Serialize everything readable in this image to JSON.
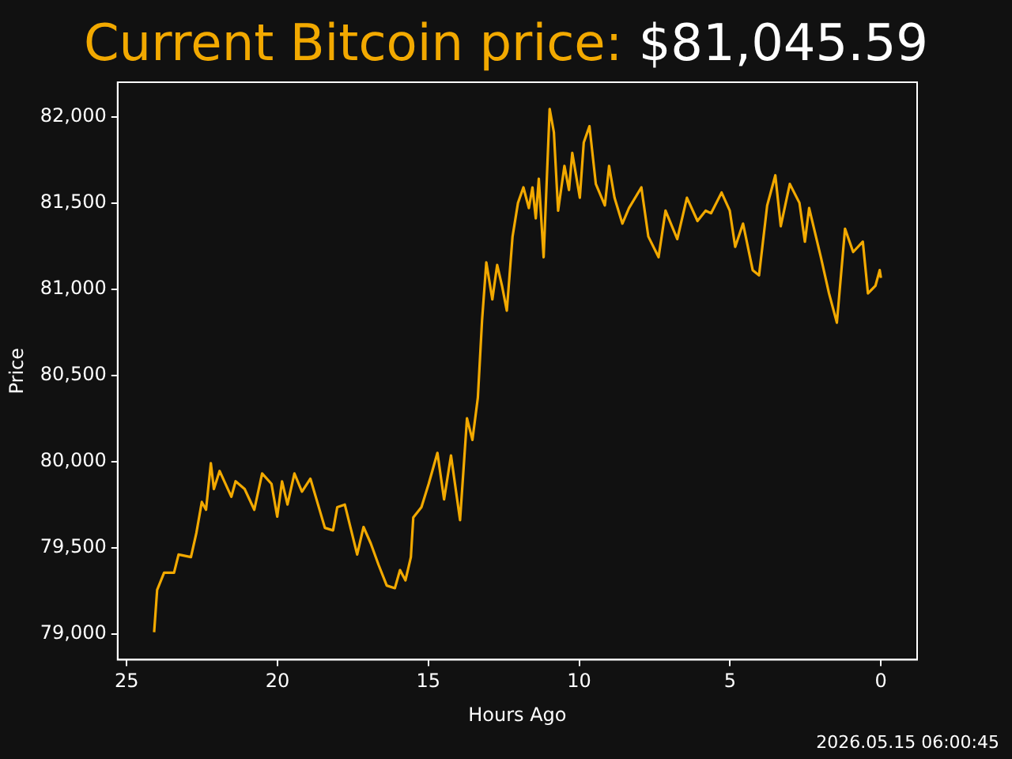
{
  "chart_data": {
    "type": "line",
    "title": "Current Bitcoin price:",
    "subtitle": "$81,045.59",
    "xlabel": "Hours Ago",
    "ylabel": "Price",
    "annotations": [
      "2026.05.15 06:00:45"
    ],
    "xlim": [
      25.3,
      -1.2
    ],
    "xticks": [
      25,
      20,
      15,
      10,
      5,
      0
    ],
    "ylim": [
      78850,
      82200
    ],
    "yticks": [
      {
        "value": 79000,
        "label": "79,000"
      },
      {
        "value": 79500,
        "label": "79,500"
      },
      {
        "value": 80000,
        "label": "80,000"
      },
      {
        "value": 80500,
        "label": "80,500"
      },
      {
        "value": 81000,
        "label": "81,000"
      },
      {
        "value": 81500,
        "label": "81,500"
      },
      {
        "value": 82000,
        "label": "82,000"
      }
    ],
    "grid": false,
    "legend": false,
    "marker": "none",
    "line_style": "solid",
    "series": [
      {
        "color": "#f2a900",
        "x": [
          24.09,
          23.99,
          23.76,
          23.43,
          23.28,
          22.87,
          22.69,
          22.51,
          22.37,
          22.21,
          22.11,
          21.92,
          21.53,
          21.39,
          21.09,
          20.77,
          20.51,
          20.2,
          20.01,
          19.85,
          19.67,
          19.44,
          19.19,
          18.91,
          18.43,
          18.16,
          18.02,
          17.77,
          17.36,
          17.15,
          16.91,
          16.65,
          16.38,
          16.11,
          15.94,
          15.76,
          15.58,
          15.5,
          15.23,
          14.99,
          14.7,
          14.48,
          14.25,
          13.95,
          13.72,
          13.54,
          13.36,
          13.22,
          13.08,
          12.88,
          12.72,
          12.56,
          12.4,
          12.21,
          12.03,
          11.85,
          11.67,
          11.55,
          11.44,
          11.34,
          11.18,
          10.98,
          10.84,
          10.7,
          10.49,
          10.34,
          10.23,
          9.98,
          9.85,
          9.66,
          9.45,
          9.15,
          9.01,
          8.83,
          8.57,
          8.35,
          7.94,
          7.71,
          7.37,
          7.14,
          6.75,
          6.43,
          6.08,
          5.81,
          5.63,
          5.28,
          5.01,
          4.83,
          4.57,
          4.25,
          4.04,
          3.77,
          3.5,
          3.32,
          3.02,
          2.7,
          2.52,
          2.38,
          1.99,
          1.72,
          1.46,
          1.19,
          0.92,
          0.6,
          0.43,
          0.18,
          0.04,
          0
        ],
        "values": [
          79010,
          79255,
          79355,
          79355,
          79460,
          79445,
          79585,
          79765,
          79720,
          79990,
          79840,
          79945,
          79795,
          79885,
          79840,
          79720,
          79930,
          79870,
          79680,
          79885,
          79750,
          79930,
          79825,
          79900,
          79615,
          79600,
          79735,
          79750,
          79460,
          79620,
          79525,
          79400,
          79280,
          79265,
          79370,
          79310,
          79445,
          79675,
          79735,
          79870,
          80050,
          79780,
          80035,
          79660,
          80250,
          80125,
          80370,
          80820,
          81155,
          80940,
          81140,
          81020,
          80875,
          81305,
          81500,
          81590,
          81470,
          81590,
          81410,
          81640,
          81185,
          82045,
          81910,
          81455,
          81715,
          81575,
          81790,
          81530,
          81850,
          81945,
          81610,
          81485,
          81715,
          81530,
          81380,
          81470,
          81590,
          81305,
          81185,
          81455,
          81290,
          81530,
          81395,
          81455,
          81440,
          81560,
          81455,
          81245,
          81380,
          81110,
          81080,
          81485,
          81660,
          81365,
          81610,
          81500,
          81275,
          81470,
          81185,
          80975,
          80805,
          81350,
          81215,
          81275,
          80975,
          81020,
          81110,
          81065
        ]
      }
    ]
  }
}
